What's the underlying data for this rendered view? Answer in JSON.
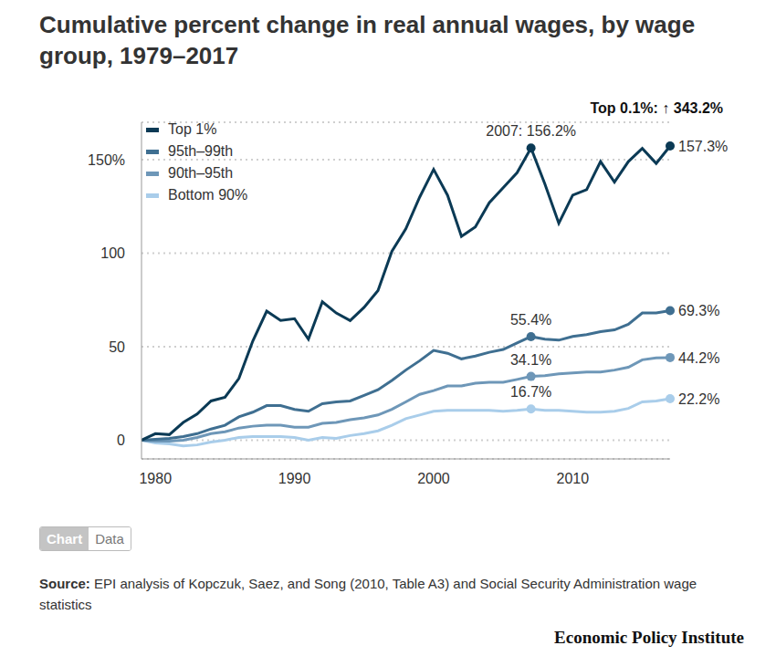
{
  "chart_data": {
    "type": "line",
    "title": "Cumulative percent change in real annual wages, by wage group, 1979–2017",
    "x": [
      1979,
      1980,
      1981,
      1982,
      1983,
      1984,
      1985,
      1986,
      1987,
      1988,
      1989,
      1990,
      1991,
      1992,
      1993,
      1994,
      1995,
      1996,
      1997,
      1998,
      1999,
      2000,
      2001,
      2002,
      2003,
      2004,
      2005,
      2006,
      2007,
      2008,
      2009,
      2010,
      2011,
      2012,
      2013,
      2014,
      2015,
      2016,
      2017
    ],
    "series": [
      {
        "name": "Top 1%",
        "color": "#0b3a55",
        "values": [
          0,
          3.5,
          3,
          9.5,
          14,
          21,
          23,
          33,
          53,
          69,
          64,
          65,
          54,
          74,
          68,
          64,
          71,
          80,
          101,
          113,
          130,
          144.8,
          131,
          109,
          114,
          127,
          135,
          143,
          156.2,
          137,
          116,
          131,
          134,
          149,
          138,
          149,
          156,
          148,
          157.3
        ]
      },
      {
        "name": "95th–99th",
        "color": "#3f6f91",
        "values": [
          0,
          0.5,
          1,
          2,
          3.5,
          6,
          8,
          12.5,
          15,
          18.5,
          18.5,
          16.5,
          15.5,
          19.5,
          20.5,
          21,
          24,
          27,
          32,
          37.5,
          42.5,
          48,
          46.5,
          43.5,
          45,
          47,
          48.5,
          52,
          55.4,
          54,
          53.5,
          55.5,
          56.5,
          58,
          59,
          62,
          68,
          68,
          69.3
        ]
      },
      {
        "name": "90th–95th",
        "color": "#6e97b8",
        "values": [
          0,
          -0.5,
          -0.5,
          0,
          1.5,
          3.5,
          4.5,
          6.5,
          7.5,
          8,
          8,
          7,
          7,
          9,
          9.5,
          11,
          12,
          13.5,
          16.5,
          20.5,
          24.5,
          26.5,
          29,
          29,
          30.5,
          31,
          31,
          32.5,
          34.1,
          34.5,
          35.5,
          36,
          36.5,
          36.5,
          37.5,
          39,
          43,
          44,
          44.2
        ]
      },
      {
        "name": "Bottom 90%",
        "color": "#a9cdea",
        "values": [
          0,
          -1.5,
          -2,
          -3,
          -2.5,
          -1,
          0,
          1.5,
          2,
          2,
          2,
          1.5,
          0,
          1.5,
          1,
          2.5,
          3.5,
          5,
          8,
          11.5,
          13.5,
          15.5,
          16,
          16,
          16,
          16,
          15.5,
          16,
          16.7,
          16,
          16,
          15.5,
          15,
          15,
          15.5,
          17,
          20.5,
          21,
          22.2
        ]
      }
    ],
    "xlim": [
      1979,
      2017
    ],
    "xticks": [
      1980,
      1990,
      2000,
      2010
    ],
    "ylim": [
      -10,
      170
    ],
    "yticks": [
      0,
      50,
      100,
      {
        "value": 150,
        "label": "150%"
      }
    ],
    "grid": true,
    "legend": "top-left",
    "annotations": [
      {
        "x": 2007,
        "y": 156.2,
        "text": "2007: 156.2%",
        "series": "Top 1%"
      },
      {
        "x": 2007,
        "y": 55.4,
        "text": "55.4%",
        "series": "95th–99th"
      },
      {
        "x": 2007,
        "y": 34.1,
        "text": "34.1%",
        "series": "90th–95th"
      },
      {
        "x": 2007,
        "y": 16.7,
        "text": "16.7%",
        "series": "Bottom 90%"
      },
      {
        "x": 2017,
        "y": 157.3,
        "text": "157.3%",
        "series": "Top 1%"
      },
      {
        "x": 2017,
        "y": 69.3,
        "text": "69.3%",
        "series": "95th–99th"
      },
      {
        "x": 2017,
        "y": 44.2,
        "text": "44.2%",
        "series": "90th–95th"
      },
      {
        "x": 2017,
        "y": 22.2,
        "text": "22.2%",
        "series": "Bottom 90%"
      }
    ],
    "note": "Top 0.1%: ↑ 343.2%"
  },
  "tabs": [
    "Chart",
    "Data"
  ],
  "source_label": "Source:",
  "source": "EPI analysis of Kopczuk, Saez, and Song (2010, Table A3) and Social Security Administration wage statistics",
  "publisher": "Economic Policy Institute"
}
